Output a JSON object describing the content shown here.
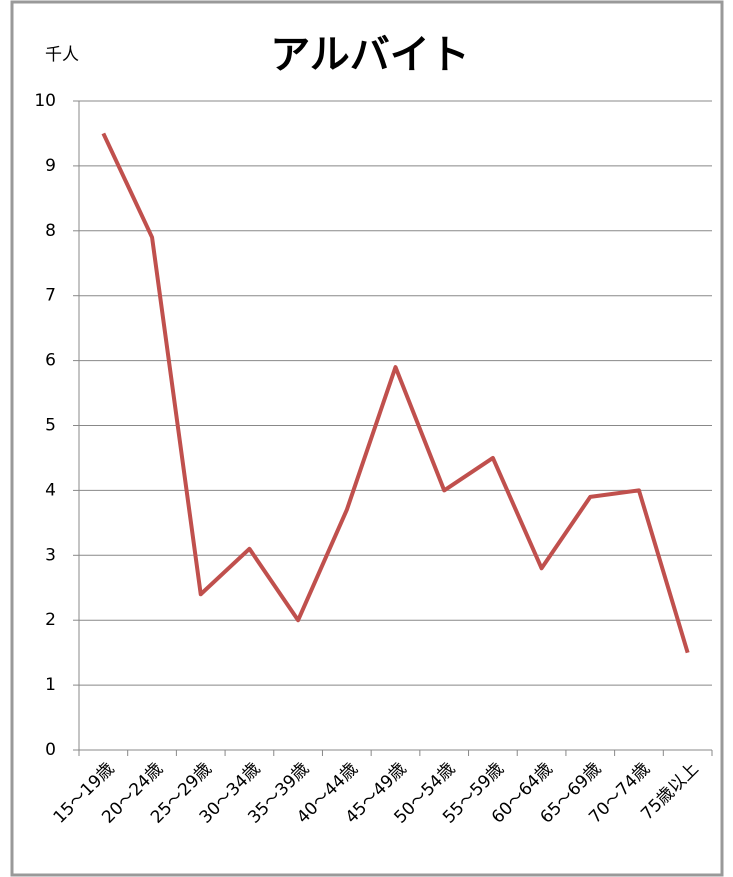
{
  "chart_data": {
    "type": "line",
    "title": "アルバイト",
    "y_label": "千人",
    "categories": [
      "15～19歳",
      "20～24歳",
      "25～29歳",
      "30～34歳",
      "35～39歳",
      "40～44歳",
      "45～49歳",
      "50～54歳",
      "55～59歳",
      "60～64歳",
      "65～69歳",
      "70～74歳",
      "75歳以上"
    ],
    "values": [
      9.5,
      7.9,
      2.4,
      3.1,
      2.0,
      3.7,
      5.9,
      4.0,
      4.5,
      2.8,
      3.9,
      4.0,
      1.5
    ],
    "color": "#c0504d",
    "ylim": [
      0,
      10
    ],
    "yticks": [
      0,
      1,
      2,
      3,
      4,
      5,
      6,
      7,
      8,
      9,
      10
    ],
    "grid": true
  }
}
